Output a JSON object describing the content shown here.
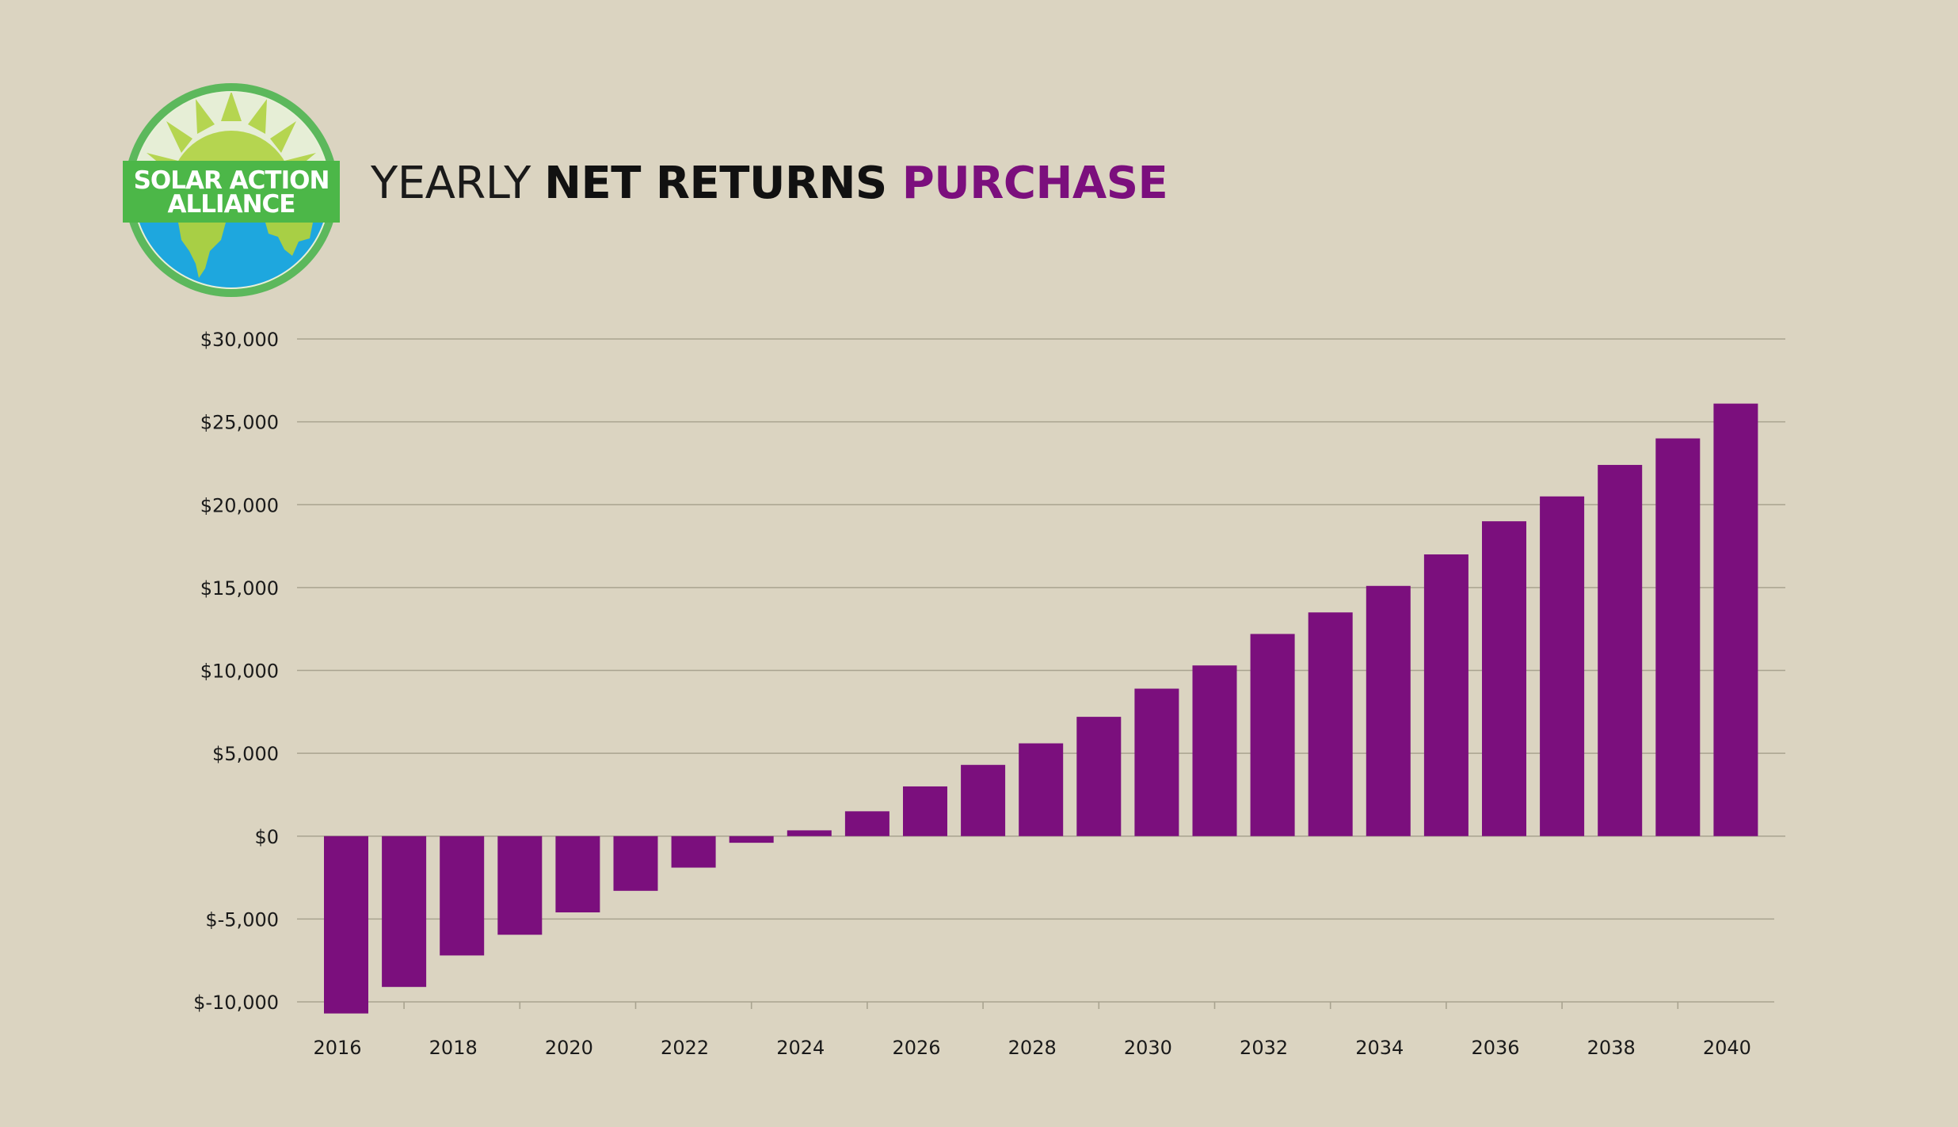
{
  "logo": {
    "line1": "SOLAR ACTION",
    "line2": "ALLIANCE",
    "colors": {
      "ring": "#5cb85c",
      "sun": "#b5d550",
      "band": "#4cb748",
      "ocean": "#1ea7de",
      "land": "#a8cf45"
    }
  },
  "title": {
    "part1": "YEARLY ",
    "part2": "NET RETURNS ",
    "part3": "PURCHASE"
  },
  "colors": {
    "background": "#dbd4c1",
    "bar": "#7b0f7d",
    "grid": "#a9a390",
    "text": "#1a1a1a"
  },
  "chart_data": {
    "type": "bar",
    "title": "YEARLY NET RETURNS PURCHASE",
    "xlabel": "",
    "ylabel": "",
    "ylim": [
      -10000,
      30000
    ],
    "yticks": [
      30000,
      25000,
      20000,
      15000,
      10000,
      5000,
      0,
      -5000,
      -10000
    ],
    "ytick_labels": [
      "$30,000",
      "$25,000",
      "$20,000",
      "$15,000",
      "$10,000",
      "$5,000",
      "$0",
      "$-5,000",
      "$-10,000"
    ],
    "x_tick_labels": [
      "2016",
      "2018",
      "2020",
      "2022",
      "2024",
      "2026",
      "2028",
      "2030",
      "2032",
      "2034",
      "2036",
      "2038",
      "2040"
    ],
    "grid": true,
    "categories": [
      "2016",
      "2017",
      "2018",
      "2019",
      "2020",
      "2021",
      "2022",
      "2023",
      "2024",
      "2025",
      "2026",
      "2027",
      "2028",
      "2029",
      "2030",
      "2031",
      "2032",
      "2033",
      "2034",
      "2035",
      "2036",
      "2037",
      "2038",
      "2039",
      "2040"
    ],
    "values": [
      -10700,
      -9100,
      -7200,
      -5950,
      -4600,
      -3300,
      -1900,
      -400,
      350,
      1500,
      3000,
      4300,
      5600,
      7200,
      8900,
      10300,
      12200,
      13500,
      15100,
      17000,
      19000,
      20500,
      22400,
      24000,
      26100
    ]
  }
}
